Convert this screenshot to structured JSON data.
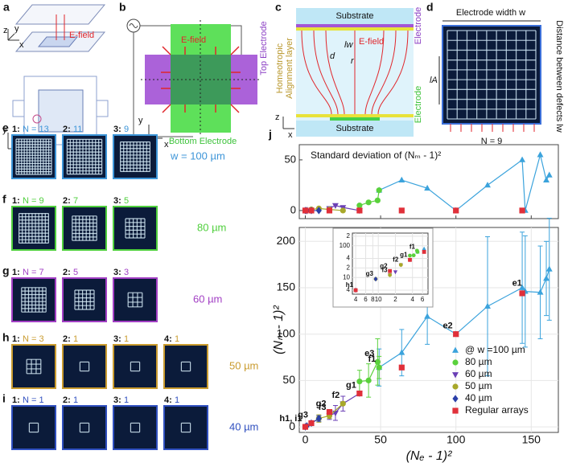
{
  "panels": {
    "a": {
      "label": "a",
      "efield": "E-field",
      "axes": [
        "z",
        "y",
        "x"
      ],
      "axes2": [
        "y",
        "x"
      ]
    },
    "b": {
      "label": "b",
      "efield": "E-field",
      "top": "Top Electrode",
      "bottom": "Bottom Electrode",
      "axes": [
        "y",
        "x"
      ]
    },
    "c": {
      "label": "c",
      "substrate_top": "Substrate",
      "electrode_top": "Electrode",
      "alignment": [
        "Homeotropic",
        "Alignment layer"
      ],
      "efield": "E-field",
      "lw": "lw",
      "d": "d",
      "r": "r",
      "axes": [
        "z",
        "x"
      ],
      "electrode_bottom": "Electrode",
      "substrate_bottom": "Substrate"
    },
    "d": {
      "label": "d",
      "width": "Electrode width w",
      "distance": "Distance between defects lw",
      "la": "lA",
      "n": "N = 9"
    }
  },
  "rows": [
    {
      "label": "e",
      "size": "w = 100 µm",
      "color": "#3d95d8",
      "images": [
        {
          "index": "1:",
          "n": "N = 13"
        },
        {
          "index": "2:",
          "n": "11"
        },
        {
          "index": "3:",
          "n": "9"
        }
      ]
    },
    {
      "label": "f",
      "size": "80 µm",
      "color": "#4fcf3c",
      "images": [
        {
          "index": "1:",
          "n": "N = 9"
        },
        {
          "index": "2:",
          "n": "7"
        },
        {
          "index": "3:",
          "n": "5"
        }
      ]
    },
    {
      "label": "g",
      "size": "60 µm",
      "color": "#a23fc4",
      "images": [
        {
          "index": "1:",
          "n": "N = 7"
        },
        {
          "index": "2:",
          "n": "5"
        },
        {
          "index": "3:",
          "n": "3"
        }
      ]
    },
    {
      "label": "h",
      "size": "50 µm",
      "color": "#c99b2e",
      "images": [
        {
          "index": "1:",
          "n": "N = 3"
        },
        {
          "index": "2:",
          "n": "1"
        },
        {
          "index": "3:",
          "n": "1"
        },
        {
          "index": "4:",
          "n": "1"
        }
      ]
    },
    {
      "label": "i",
      "size": "40 µm",
      "color": "#2f4fbf",
      "images": [
        {
          "index": "1:",
          "n": "N = 1"
        },
        {
          "index": "2:",
          "n": "1"
        },
        {
          "index": "3:",
          "n": "1"
        },
        {
          "index": "4:",
          "n": "1"
        }
      ]
    }
  ],
  "chart_data": {
    "type": "scatter",
    "title": "j",
    "xlabel": "(Nₑ - 1)²",
    "ylabel": "(Nₘ - 1)²",
    "xlim": [
      -4,
      168
    ],
    "xticks": [
      0,
      50,
      100,
      150
    ],
    "ylim": [
      -6,
      215
    ],
    "yticks": [
      0,
      50,
      100,
      150,
      200
    ],
    "grid": true,
    "legend": "lower right",
    "series": [
      {
        "name": "@ w =100 µm",
        "color": "#3ba3dc",
        "marker": "triangle-up",
        "line": true,
        "x": [
          49,
          64,
          81,
          100,
          121,
          144,
          146,
          156,
          160,
          162
        ],
        "values": [
          64,
          80,
          119,
          100,
          130,
          150,
          146,
          145,
          160,
          170
        ],
        "errors": [
          20,
          25,
          30,
          0,
          75,
          60,
          60,
          50,
          40,
          55
        ],
        "std": [
          20,
          30,
          22,
          0,
          25,
          50,
          0,
          55,
          30,
          35
        ]
      },
      {
        "name": "80 µm",
        "color": "#5ad13c",
        "marker": "circle",
        "line": true,
        "x": [
          36,
          42,
          48,
          49
        ],
        "values": [
          49,
          50,
          70,
          64
        ],
        "errors": [
          12,
          18,
          25,
          12
        ],
        "std": [
          5,
          8,
          10,
          20
        ]
      },
      {
        "name": "60 µm",
        "color": "#6a3fb5",
        "marker": "triangle-down",
        "line": true,
        "x": [
          16,
          20,
          25,
          36
        ],
        "values": [
          12,
          15,
          25,
          36
        ],
        "errors": [
          4,
          8,
          8,
          0
        ],
        "std": [
          2,
          5,
          3,
          0
        ]
      },
      {
        "name": "50 µm",
        "color": "#a8a82a",
        "marker": "circle",
        "line": true,
        "x": [
          4,
          9,
          16,
          25
        ],
        "values": [
          4,
          9,
          12,
          25
        ],
        "errors": [
          2,
          4,
          3,
          0
        ],
        "std": [
          1,
          2,
          1,
          0
        ]
      },
      {
        "name": "40 µm",
        "color": "#2a3fa8",
        "marker": "diamond",
        "line": true,
        "x": [
          0,
          1,
          4,
          9
        ],
        "values": [
          0,
          1,
          4,
          9
        ],
        "errors": [
          0,
          1,
          2,
          3
        ],
        "std": [
          0,
          0,
          0,
          0
        ]
      },
      {
        "name": "Regular arrays",
        "color": "#e0303a",
        "marker": "square",
        "line": false,
        "x": [
          0,
          4,
          16,
          36,
          64,
          100,
          144
        ],
        "values": [
          0,
          4,
          16,
          36,
          64,
          100,
          144
        ],
        "std": [
          0,
          0,
          0,
          0,
          0,
          0,
          0
        ]
      }
    ],
    "std_chart": {
      "title": "Standard deviation of (Nₘ - 1)²",
      "ylim": [
        -8,
        65
      ],
      "yticks": [
        0,
        50
      ]
    },
    "inset": {
      "log": true,
      "xlim": [
        3.5,
        75
      ],
      "xticks": [
        4,
        6,
        8,
        10,
        {
          "value": 20,
          "label": "2"
        },
        {
          "value": 40,
          "label": "4"
        },
        {
          "value": 60,
          "label": "6"
        }
      ],
      "ylim": [
        3,
        250
      ],
      "yticks": [
        4,
        10,
        {
          "value": 20,
          "label": "2"
        },
        {
          "value": 40,
          "label": "4"
        },
        100,
        {
          "value": 200,
          "label": "2"
        }
      ]
    },
    "annotations": [
      {
        "text": "h1, i1",
        "x": 0,
        "y": 0
      },
      {
        "text": "g3",
        "x": 4,
        "y": 4
      },
      {
        "text": "f3",
        "x": 16,
        "y": 12
      },
      {
        "text": "g2",
        "x": 16,
        "y": 16
      },
      {
        "text": "f2",
        "x": 25,
        "y": 25
      },
      {
        "text": "g1",
        "x": 36,
        "y": 36
      },
      {
        "text": "e3",
        "x": 48,
        "y": 70
      },
      {
        "text": "f1",
        "x": 49,
        "y": 64
      },
      {
        "text": "e2",
        "x": 100,
        "y": 100
      },
      {
        "text": "e1",
        "x": 146,
        "y": 146
      }
    ],
    "inset_annotations": [
      {
        "text": "h1",
        "x": 4,
        "y": 4
      },
      {
        "text": "g3",
        "x": 9,
        "y": 9
      },
      {
        "text": "f3",
        "x": 16,
        "y": 12
      },
      {
        "text": "g2",
        "x": 16,
        "y": 16
      },
      {
        "text": "f2",
        "x": 25,
        "y": 25
      },
      {
        "text": "g1",
        "x": 36,
        "y": 36
      },
      {
        "text": "f1",
        "x": 49,
        "y": 64
      }
    ]
  }
}
